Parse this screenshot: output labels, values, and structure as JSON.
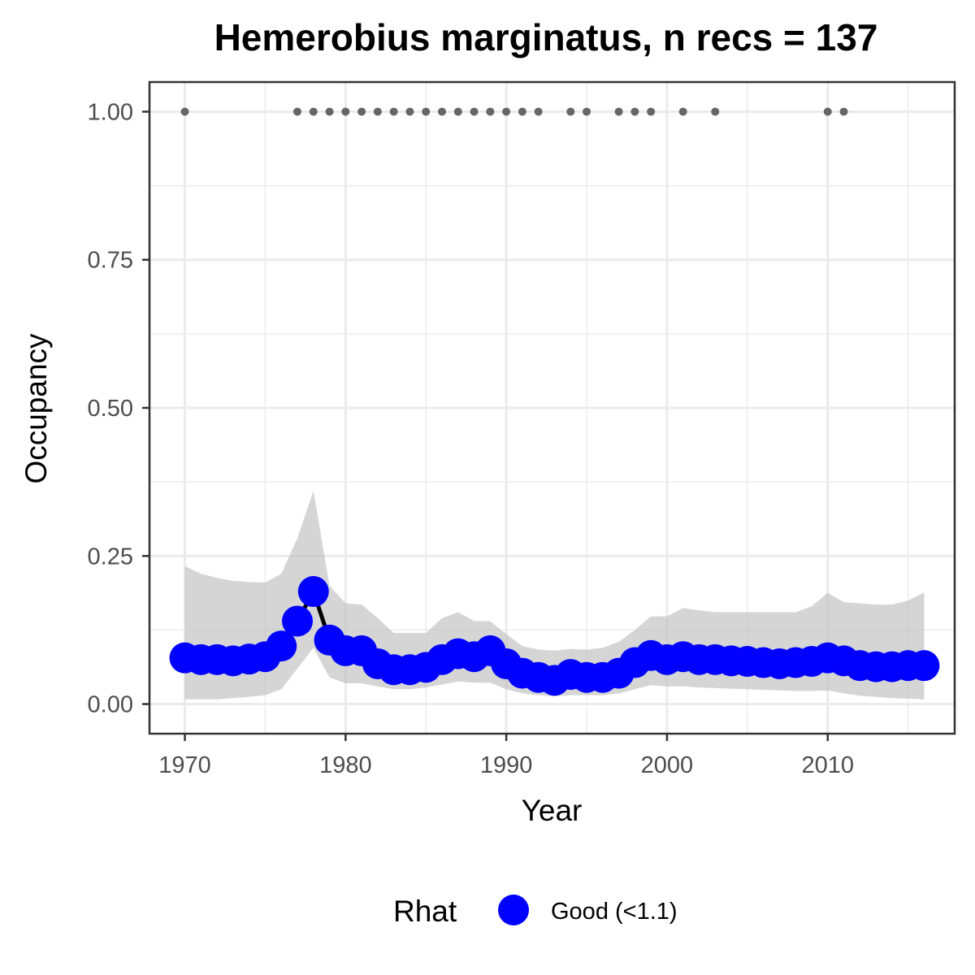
{
  "chart_data": {
    "type": "line",
    "title": "Hemerobius marginatus, n recs = 137",
    "xlabel": "Year",
    "ylabel": "Occupancy",
    "xlim": [
      1967.8,
      2017.9
    ],
    "ylim": [
      -0.05,
      1.05
    ],
    "x_ticks": [
      1970,
      1980,
      1990,
      2000,
      2010
    ],
    "x_tick_labels": [
      "1970",
      "1980",
      "1990",
      "2000",
      "2010"
    ],
    "y_ticks": [
      0,
      0.25,
      0.5,
      0.75,
      1.0
    ],
    "y_tick_labels": [
      "0.00",
      "0.25",
      "0.50",
      "0.75",
      "1.00"
    ],
    "grid": true,
    "legend": {
      "title": "Rhat",
      "placement": "bottom",
      "entries": [
        {
          "label": "Good (<1.1)",
          "color": "#0000ff"
        }
      ]
    },
    "series": {
      "x": [
        1970,
        1971,
        1972,
        1973,
        1974,
        1975,
        1976,
        1977,
        1978,
        1979,
        1980,
        1981,
        1982,
        1983,
        1984,
        1985,
        1986,
        1987,
        1988,
        1989,
        1990,
        1991,
        1992,
        1993,
        1994,
        1995,
        1996,
        1997,
        1998,
        1999,
        2000,
        2001,
        2002,
        2003,
        2004,
        2005,
        2006,
        2007,
        2008,
        2009,
        2010,
        2011,
        2012,
        2013,
        2014,
        2015,
        2016
      ],
      "mean": [
        0.078,
        0.075,
        0.075,
        0.073,
        0.076,
        0.08,
        0.098,
        0.14,
        0.19,
        0.108,
        0.09,
        0.09,
        0.068,
        0.058,
        0.058,
        0.062,
        0.075,
        0.085,
        0.08,
        0.09,
        0.068,
        0.052,
        0.045,
        0.04,
        0.05,
        0.045,
        0.045,
        0.052,
        0.07,
        0.082,
        0.075,
        0.08,
        0.075,
        0.075,
        0.073,
        0.072,
        0.07,
        0.068,
        0.07,
        0.072,
        0.078,
        0.073,
        0.065,
        0.063,
        0.063,
        0.065,
        0.065
      ],
      "lower": [
        0.008,
        0.008,
        0.008,
        0.01,
        0.012,
        0.015,
        0.025,
        0.06,
        0.095,
        0.045,
        0.035,
        0.035,
        0.03,
        0.025,
        0.025,
        0.028,
        0.033,
        0.038,
        0.036,
        0.036,
        0.025,
        0.018,
        0.015,
        0.013,
        0.015,
        0.015,
        0.015,
        0.018,
        0.025,
        0.032,
        0.03,
        0.03,
        0.028,
        0.027,
        0.026,
        0.025,
        0.024,
        0.023,
        0.022,
        0.022,
        0.023,
        0.018,
        0.014,
        0.012,
        0.01,
        0.009,
        0.008
      ],
      "upper": [
        0.233,
        0.22,
        0.213,
        0.208,
        0.206,
        0.205,
        0.22,
        0.28,
        0.36,
        0.2,
        0.17,
        0.168,
        0.145,
        0.12,
        0.12,
        0.12,
        0.145,
        0.155,
        0.14,
        0.14,
        0.118,
        0.098,
        0.092,
        0.09,
        0.093,
        0.092,
        0.095,
        0.105,
        0.125,
        0.148,
        0.148,
        0.162,
        0.158,
        0.155,
        0.155,
        0.155,
        0.155,
        0.155,
        0.155,
        0.165,
        0.188,
        0.172,
        0.17,
        0.168,
        0.168,
        0.175,
        0.188
      ],
      "line_color": "#000000",
      "point_color": "#0000ff",
      "ribbon_color": "#bebebe"
    },
    "records": {
      "y": 1.0,
      "color": "#666666",
      "years": [
        1970,
        1977,
        1978,
        1979,
        1980,
        1981,
        1982,
        1983,
        1984,
        1985,
        1986,
        1987,
        1988,
        1989,
        1990,
        1991,
        1992,
        1994,
        1995,
        1997,
        1998,
        1999,
        2001,
        2003,
        2010,
        2011
      ]
    }
  }
}
